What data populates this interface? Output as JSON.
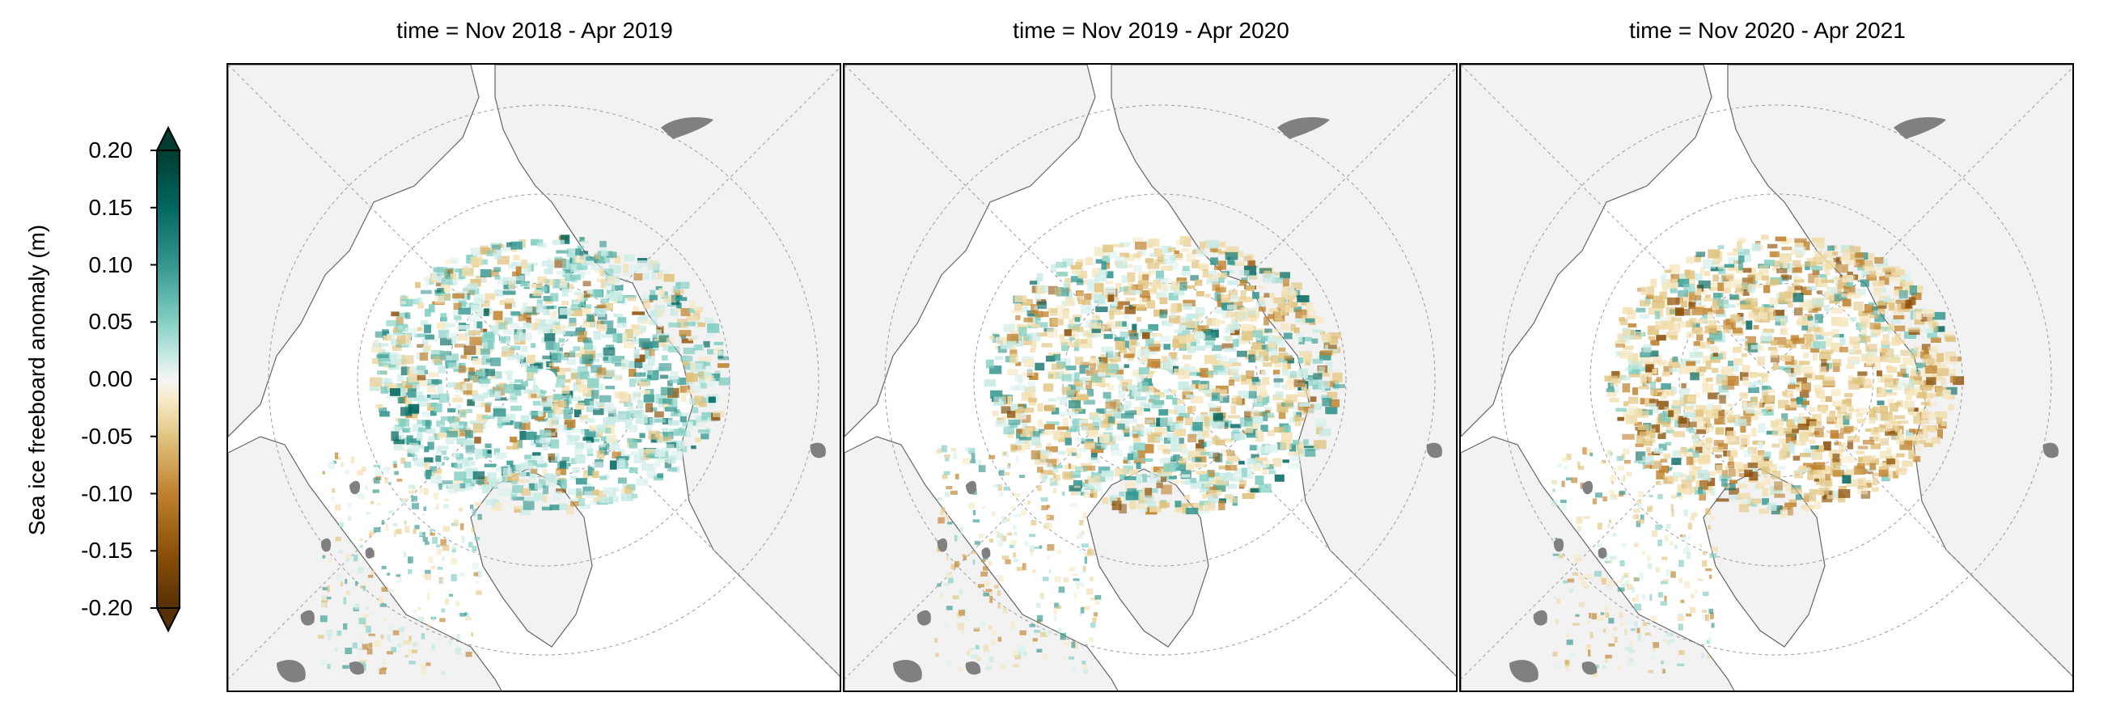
{
  "colorbar": {
    "label": "Sea ice freeboard anomaly (m)",
    "min": -0.2,
    "max": 0.2,
    "ticks": [
      "0.20",
      "0.15",
      "0.10",
      "0.05",
      "0.00",
      "-0.05",
      "-0.10",
      "-0.15",
      "-0.20"
    ],
    "colormap": "BrBG",
    "extend": "both",
    "colors": {
      "low": "#543005",
      "mid": "#f5f5f5",
      "high": "#003c30"
    }
  },
  "panels": [
    {
      "title": "time = Nov 2018 - Apr 2019",
      "pattern": "teal-dominant"
    },
    {
      "title": "time = Nov 2019 - Apr 2020",
      "pattern": "mixed"
    },
    {
      "title": "time = Nov 2020 - Apr 2021",
      "pattern": "brown-dominant"
    }
  ],
  "map_colors": {
    "land": "#f2f2f2",
    "ocean": "#ffffff",
    "lake": "#808080",
    "coast": "#666666"
  }
}
